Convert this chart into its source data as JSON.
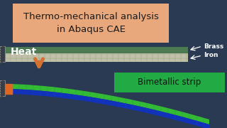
{
  "bg_color": "#2a3a52",
  "title_text": "Thermo-mechanical analysis\nin Abaqus CAE",
  "title_bg": "#e8a87c",
  "title_fontsize": 9.5,
  "title_color": "#1a1a1a",
  "heat_text": "Heat",
  "heat_color": "#ffffff",
  "heat_fontsize": 10,
  "arrow_color": "#d47030",
  "brass_label": "Brass",
  "iron_label": "Iron",
  "label_color": "#ffffff",
  "label_fontsize": 6.5,
  "bimetallic_text": "Bimetallic strip",
  "bimetallic_bg": "#22aa44",
  "bimetallic_fontsize": 8.5,
  "bimetallic_color": "#111111",
  "brass_color": "#4a7a50",
  "iron_color": "#c0c0a8",
  "mesh_line_color": "#777766",
  "strip_green": "#33bb33",
  "strip_blue": "#1133bb",
  "strip_orange": "#dd6622",
  "wall_color": "#888888",
  "wall_hatch_color": "#444444",
  "arrow_label_color": "#ffffff"
}
